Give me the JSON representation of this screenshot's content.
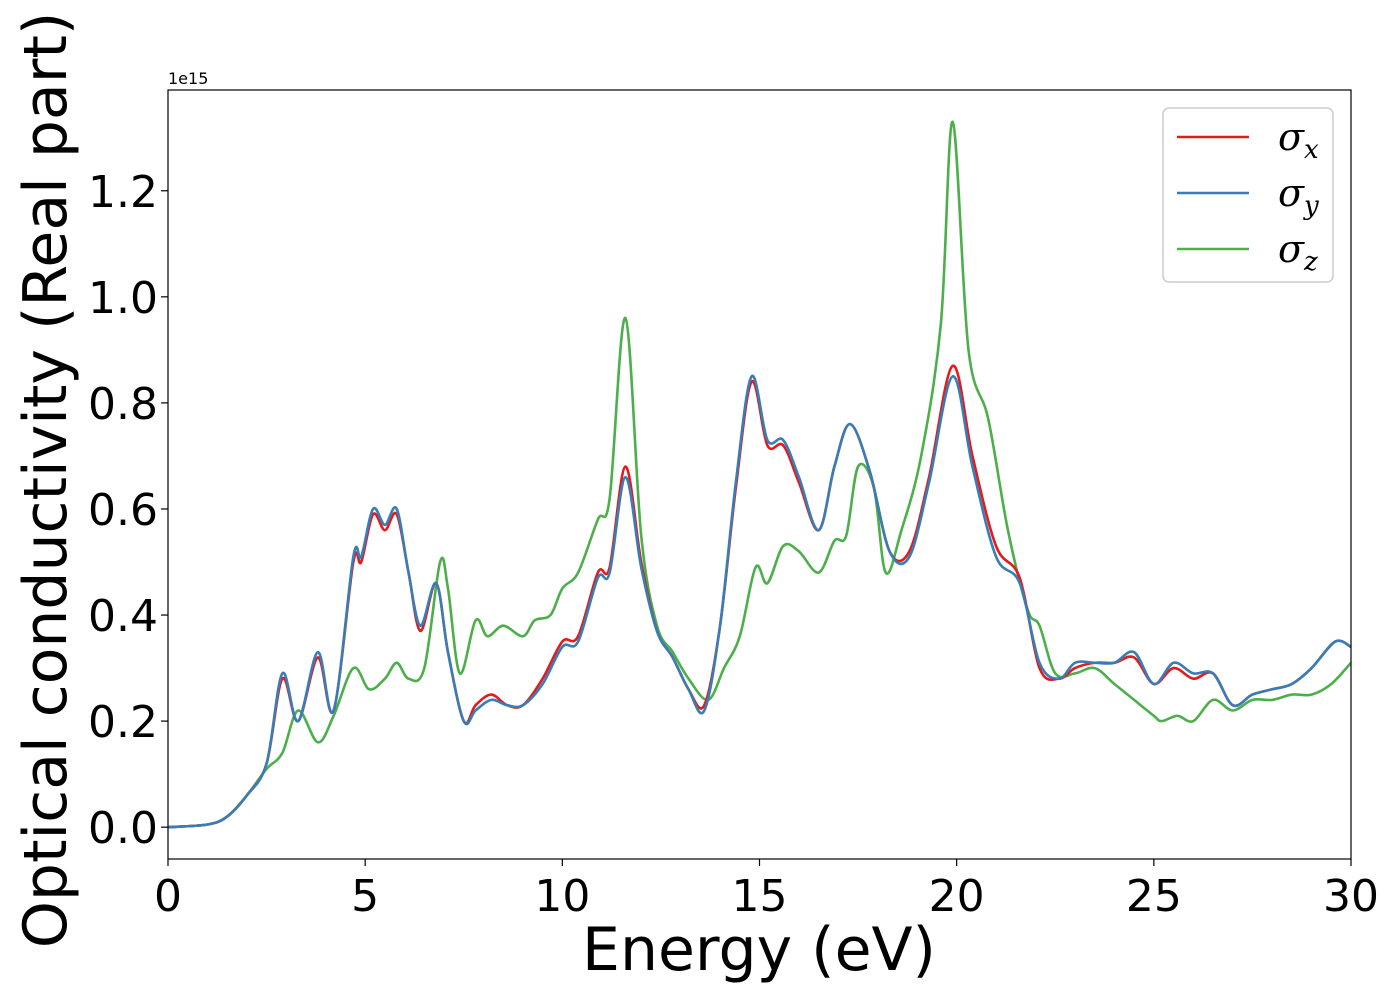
{
  "chart_data": {
    "type": "line",
    "xlabel": "Energy (eV)",
    "ylabel": "Optical conductivity (Real part)",
    "y_offset_label": "1e15",
    "xlim": [
      0,
      30
    ],
    "ylim": [
      -0.06,
      1.39
    ],
    "xticks": [
      0,
      5,
      10,
      15,
      20,
      25,
      30
    ],
    "xtick_labels": [
      "0",
      "5",
      "10",
      "15",
      "20",
      "25",
      "30"
    ],
    "yticks": [
      0.0,
      0.2,
      0.4,
      0.6,
      0.8,
      1.0,
      1.2
    ],
    "ytick_labels": [
      "0.0",
      "0.2",
      "0.4",
      "0.6",
      "0.8",
      "1.0",
      "1.2"
    ],
    "grid": false,
    "legend_position": "top-right",
    "series": [
      {
        "name": "σx",
        "name_base": "σ",
        "name_sub": "x",
        "color": "#e41a1c",
        "x": [
          0,
          1,
          1.5,
          2,
          2.5,
          2.9,
          3.3,
          3.8,
          4.2,
          4.7,
          4.9,
          5.2,
          5.5,
          5.8,
          6.1,
          6.4,
          6.8,
          7.1,
          7.5,
          7.8,
          8.2,
          8.6,
          9,
          9.5,
          10,
          10.4,
          10.9,
          11.2,
          11.6,
          12,
          12.4,
          12.8,
          13.2,
          13.6,
          14,
          14.4,
          14.8,
          15.2,
          15.6,
          16,
          16.5,
          16.9,
          17.3,
          17.8,
          18.3,
          18.8,
          19.3,
          19.9,
          20.4,
          21,
          21.6,
          22.1,
          22.6,
          23,
          23.5,
          24,
          24.5,
          25,
          25.5,
          26,
          26.5,
          27,
          27.5,
          28,
          28.5,
          29,
          29.6,
          30
        ],
        "y": [
          0,
          0.005,
          0.02,
          0.06,
          0.12,
          0.28,
          0.2,
          0.32,
          0.22,
          0.5,
          0.5,
          0.59,
          0.56,
          0.59,
          0.48,
          0.37,
          0.46,
          0.33,
          0.2,
          0.23,
          0.25,
          0.23,
          0.23,
          0.28,
          0.35,
          0.36,
          0.48,
          0.49,
          0.68,
          0.5,
          0.37,
          0.32,
          0.26,
          0.23,
          0.38,
          0.64,
          0.84,
          0.72,
          0.72,
          0.65,
          0.56,
          0.68,
          0.76,
          0.67,
          0.52,
          0.52,
          0.66,
          0.87,
          0.7,
          0.53,
          0.47,
          0.3,
          0.28,
          0.3,
          0.31,
          0.31,
          0.32,
          0.27,
          0.3,
          0.28,
          0.29,
          0.23,
          0.25,
          0.26,
          0.27,
          0.3,
          0.35,
          0.34
        ]
      },
      {
        "name": "σy",
        "name_base": "σ",
        "name_sub": "y",
        "color": "#377eb8",
        "x": [
          0,
          1,
          1.5,
          2,
          2.5,
          2.9,
          3.3,
          3.8,
          4.2,
          4.7,
          4.9,
          5.2,
          5.5,
          5.8,
          6.1,
          6.4,
          6.8,
          7.1,
          7.5,
          7.8,
          8.2,
          8.6,
          9,
          9.5,
          10,
          10.4,
          10.9,
          11.2,
          11.6,
          12,
          12.4,
          12.8,
          13.2,
          13.6,
          14,
          14.4,
          14.8,
          15.2,
          15.6,
          16,
          16.5,
          16.9,
          17.3,
          17.8,
          18.3,
          18.8,
          19.3,
          19.9,
          20.4,
          21,
          21.6,
          22.1,
          22.6,
          23,
          23.5,
          24,
          24.5,
          25,
          25.5,
          26,
          26.5,
          27,
          27.5,
          28,
          28.5,
          29,
          29.6,
          30
        ],
        "y": [
          0,
          0.005,
          0.02,
          0.06,
          0.12,
          0.29,
          0.2,
          0.33,
          0.22,
          0.51,
          0.51,
          0.6,
          0.57,
          0.6,
          0.48,
          0.38,
          0.46,
          0.33,
          0.2,
          0.22,
          0.24,
          0.23,
          0.23,
          0.27,
          0.34,
          0.35,
          0.47,
          0.48,
          0.66,
          0.49,
          0.37,
          0.32,
          0.26,
          0.22,
          0.38,
          0.65,
          0.85,
          0.73,
          0.73,
          0.66,
          0.56,
          0.68,
          0.76,
          0.67,
          0.52,
          0.51,
          0.65,
          0.85,
          0.68,
          0.51,
          0.46,
          0.31,
          0.28,
          0.31,
          0.31,
          0.31,
          0.33,
          0.27,
          0.31,
          0.29,
          0.29,
          0.23,
          0.25,
          0.26,
          0.27,
          0.3,
          0.35,
          0.34
        ]
      },
      {
        "name": "σz",
        "name_base": "σ",
        "name_sub": "z",
        "color": "#4daf4a",
        "x": [
          0,
          1,
          1.5,
          2,
          2.5,
          2.9,
          3.3,
          3.8,
          4.2,
          4.7,
          5.1,
          5.5,
          5.8,
          6.1,
          6.5,
          6.9,
          7.1,
          7.4,
          7.8,
          8.1,
          8.5,
          9,
          9.3,
          9.7,
          10,
          10.4,
          10.9,
          11.2,
          11.6,
          12,
          12.4,
          12.8,
          13.2,
          13.7,
          14.1,
          14.5,
          14.9,
          15.2,
          15.6,
          16,
          16.5,
          16.9,
          17.2,
          17.5,
          17.9,
          18.2,
          18.6,
          19.1,
          19.6,
          19.9,
          20.3,
          20.8,
          21.3,
          21.8,
          22.1,
          22.5,
          23,
          23.5,
          24,
          24.5,
          25,
          25.2,
          25.6,
          26,
          26.5,
          27,
          27.5,
          28,
          28.5,
          29,
          29.5,
          30
        ],
        "y": [
          0,
          0.005,
          0.02,
          0.06,
          0.11,
          0.14,
          0.22,
          0.16,
          0.21,
          0.3,
          0.26,
          0.28,
          0.31,
          0.28,
          0.3,
          0.5,
          0.45,
          0.29,
          0.39,
          0.36,
          0.38,
          0.36,
          0.39,
          0.4,
          0.45,
          0.48,
          0.58,
          0.62,
          0.96,
          0.55,
          0.38,
          0.33,
          0.28,
          0.24,
          0.3,
          0.36,
          0.49,
          0.46,
          0.53,
          0.52,
          0.48,
          0.54,
          0.55,
          0.68,
          0.64,
          0.48,
          0.56,
          0.7,
          0.95,
          1.33,
          0.9,
          0.77,
          0.56,
          0.41,
          0.38,
          0.29,
          0.29,
          0.3,
          0.27,
          0.24,
          0.21,
          0.2,
          0.21,
          0.2,
          0.24,
          0.22,
          0.24,
          0.24,
          0.25,
          0.25,
          0.27,
          0.31
        ]
      }
    ]
  }
}
